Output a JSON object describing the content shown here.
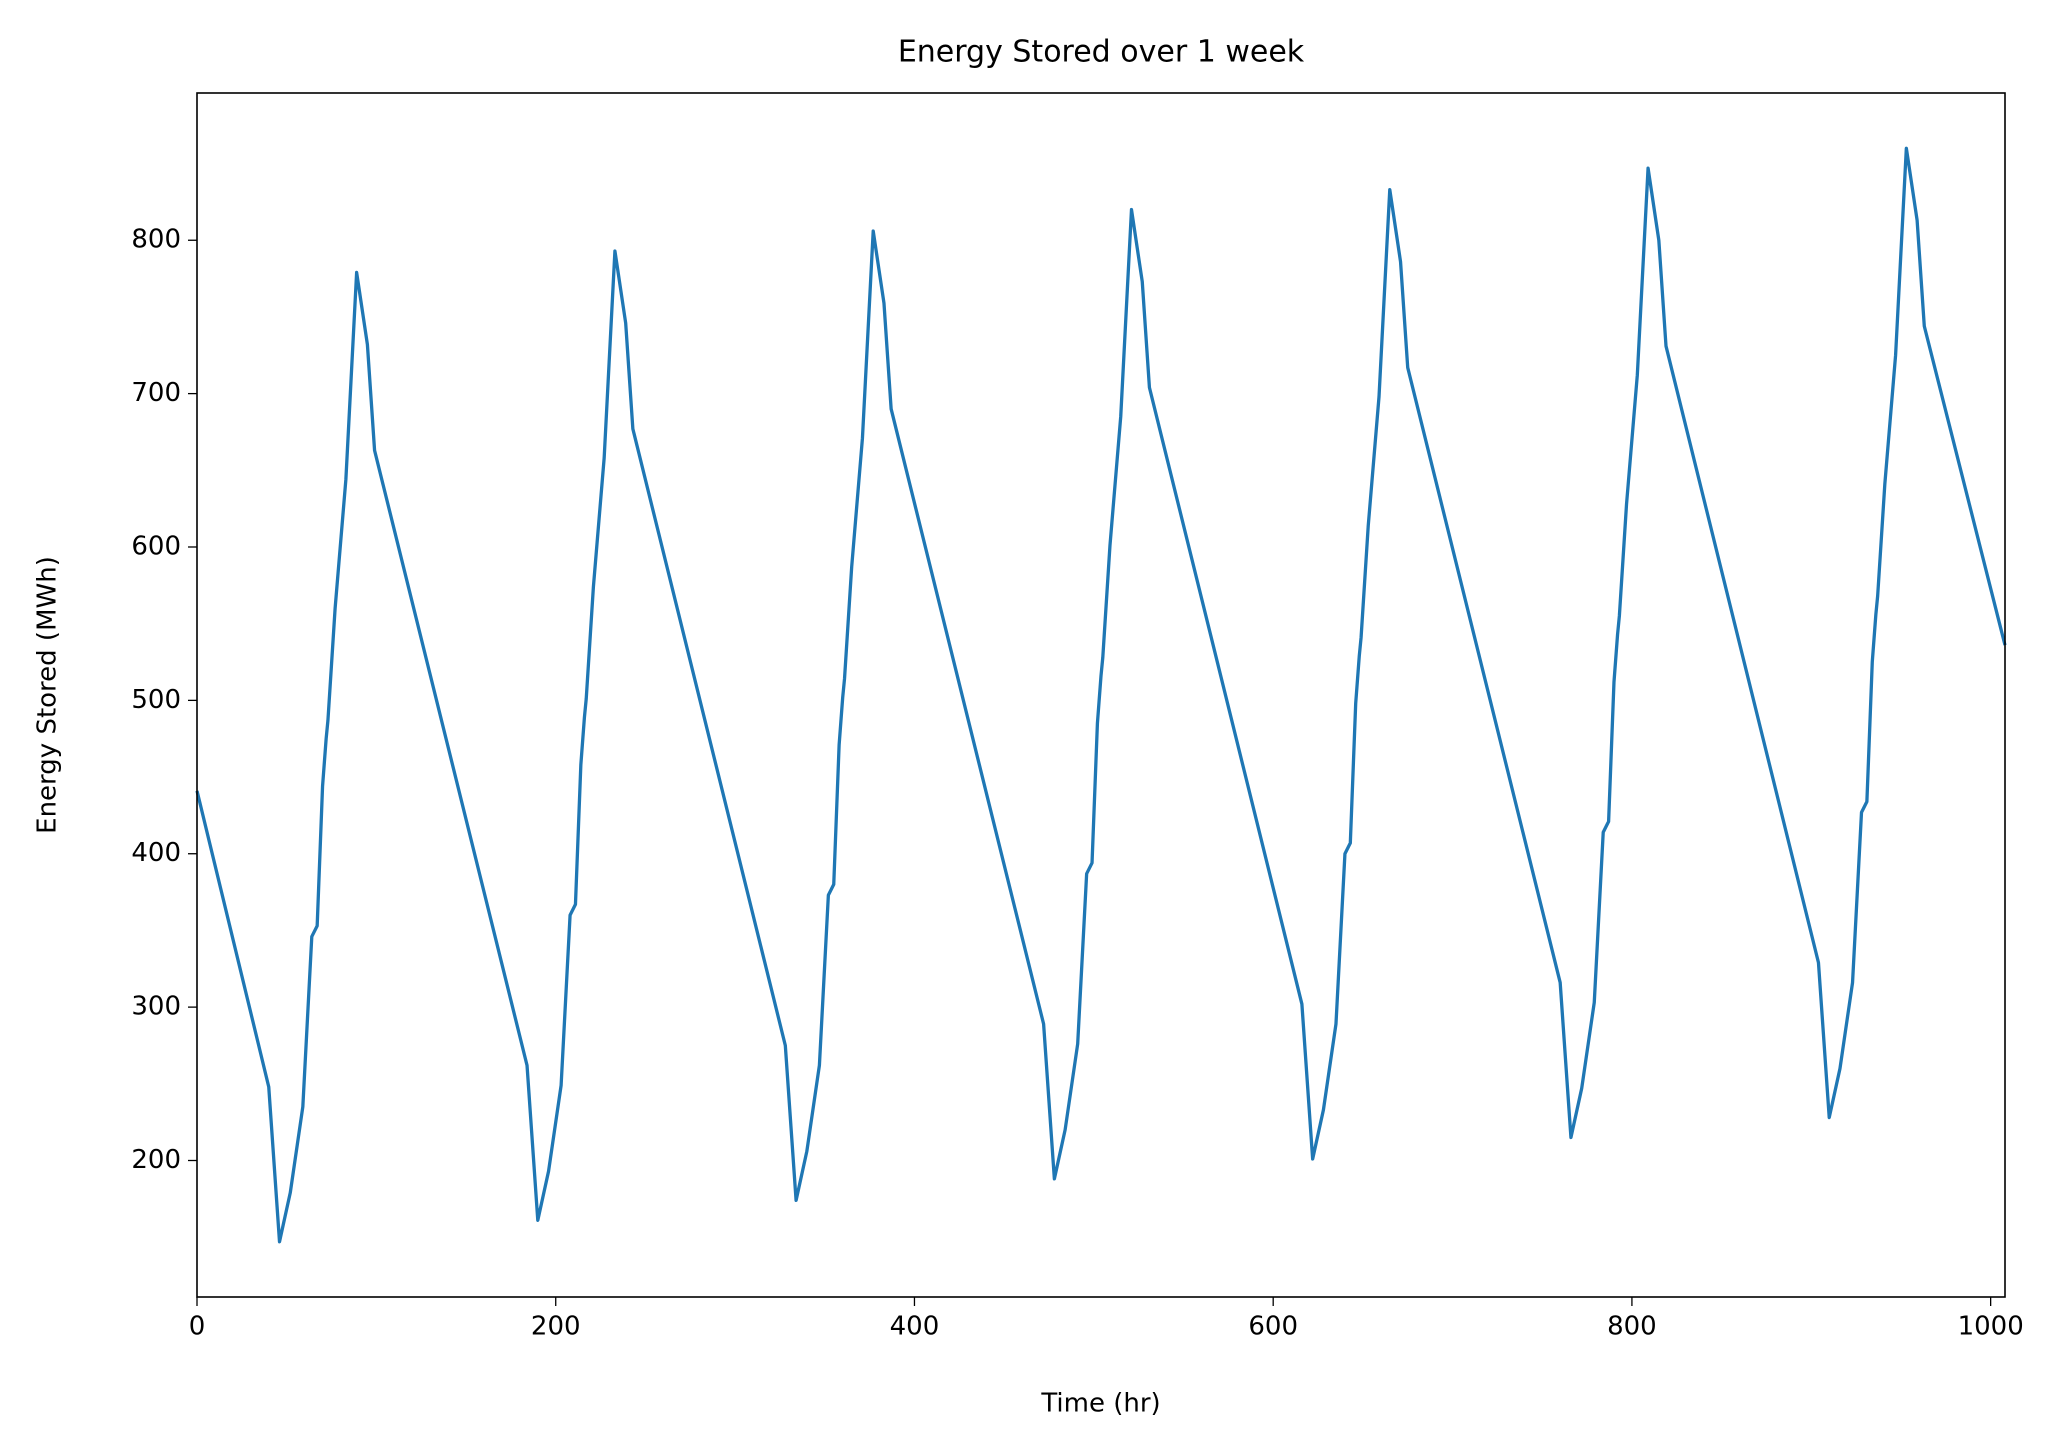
{
  "chart_data": {
    "type": "line",
    "title": "Energy Stored over 1 week",
    "xlabel": "Time (hr)",
    "ylabel": "Energy Stored (MWh)",
    "x": [
      0,
      40,
      46,
      52,
      59,
      64,
      67,
      70,
      72,
      73,
      77,
      83,
      89,
      95,
      99,
      184,
      190,
      196,
      203,
      208,
      211,
      214,
      216,
      217,
      221,
      227,
      233,
      239,
      243,
      328,
      334,
      340,
      347,
      352,
      355,
      358,
      360,
      361,
      365,
      371,
      377,
      383,
      387,
      472,
      478,
      484,
      491,
      496,
      499,
      502,
      504,
      505,
      509,
      515,
      521,
      527,
      531,
      616,
      622,
      628,
      635,
      640,
      643,
      646,
      648,
      649,
      653,
      659,
      665,
      671,
      675,
      760,
      766,
      772,
      779,
      784,
      787,
      790,
      792,
      793,
      797,
      803,
      809,
      815,
      819,
      904,
      910,
      916,
      923,
      928,
      931,
      934,
      936,
      937,
      941,
      947,
      953,
      959,
      963,
      1008
    ],
    "series": [
      {
        "color": "#1f77b4",
        "values": [
          441,
          248,
          147,
          179,
          235,
          346,
          353,
          444,
          475,
          487,
          560,
          644,
          779,
          732,
          663,
          262,
          161,
          193,
          249,
          360,
          367,
          458,
          489,
          501,
          574,
          658,
          793,
          746,
          677,
          275,
          174,
          206,
          262,
          373,
          380,
          471,
          502,
          514,
          587,
          671,
          806,
          759,
          690,
          289,
          188,
          220,
          276,
          387,
          394,
          485,
          516,
          528,
          601,
          685,
          820,
          773,
          704,
          302,
          201,
          233,
          289,
          400,
          407,
          498,
          529,
          541,
          614,
          698,
          833,
          786,
          717,
          316,
          215,
          247,
          303,
          414,
          421,
          512,
          543,
          555,
          628,
          712,
          847,
          800,
          731,
          329,
          228,
          260,
          316,
          427,
          434,
          525,
          556,
          568,
          641,
          725,
          860,
          813,
          744,
          536
        ]
      }
    ],
    "xlim": [
      0,
      1008
    ],
    "ylim": [
      111,
      896
    ],
    "xticks": [
      0,
      200,
      400,
      600,
      800,
      1000
    ],
    "yticks": [
      200,
      300,
      400,
      500,
      600,
      700,
      800
    ]
  }
}
